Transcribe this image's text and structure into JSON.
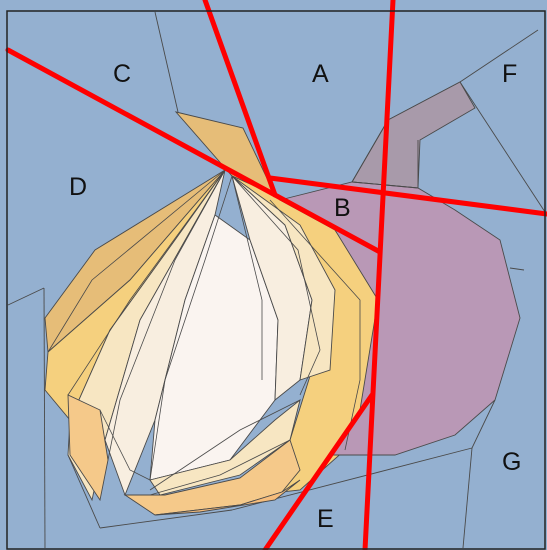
{
  "labels": {
    "a": "A",
    "b": "B",
    "c": "C",
    "d": "D",
    "e": "E",
    "f": "F",
    "g": "G"
  },
  "colors": {
    "background_blue": "#94b0d0",
    "onion_dark_gold": "#e6bd78",
    "onion_gold": "#f5d07e",
    "onion_light": "#f7e6c2",
    "onion_cream": "#f8eee0",
    "onion_core": "#faf4f0",
    "onion_peach": "#f5c98a",
    "onion_orange": "#f6bd7c",
    "fig_purple": "#b998b6",
    "fig_stem": "#a89aaa",
    "outline": "#4a4a4a",
    "cut_line": "#ff0000",
    "frame": "#222222"
  }
}
